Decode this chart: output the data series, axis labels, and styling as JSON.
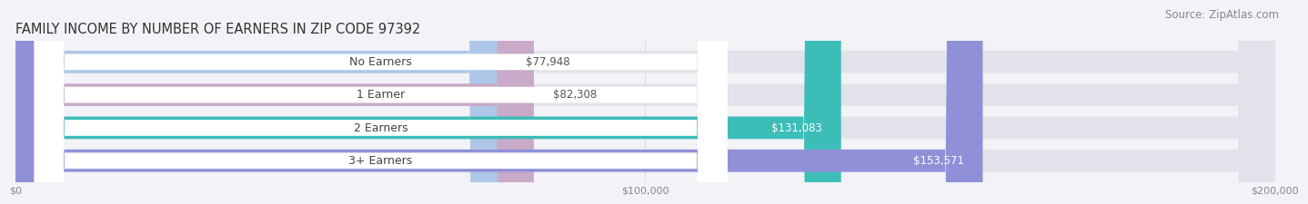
{
  "title": "FAMILY INCOME BY NUMBER OF EARNERS IN ZIP CODE 97392",
  "source": "Source: ZipAtlas.com",
  "categories": [
    "No Earners",
    "1 Earner",
    "2 Earners",
    "3+ Earners"
  ],
  "values": [
    77948,
    82308,
    131083,
    153571
  ],
  "bar_colors": [
    "#aec6e8",
    "#c9aac8",
    "#3dbdb8",
    "#9090d8"
  ],
  "label_colors": [
    "#555555",
    "#555555",
    "#ffffff",
    "#ffffff"
  ],
  "value_labels": [
    "$77,948",
    "$82,308",
    "$131,083",
    "$153,571"
  ],
  "xmax": 200000,
  "xtick_labels": [
    "$0",
    "$100,000",
    "$200,000"
  ],
  "background_color": "#f2f2f7",
  "bar_background_color": "#e2e2ea",
  "title_fontsize": 10.5,
  "source_fontsize": 8.5,
  "label_fontsize": 9,
  "value_fontsize": 8.5
}
